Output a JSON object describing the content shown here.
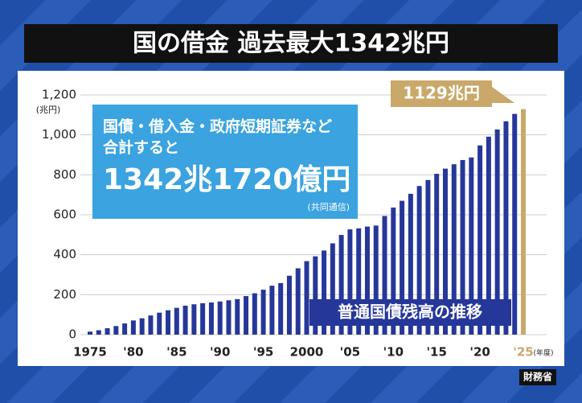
{
  "chart_data": {
    "type": "bar",
    "title": "国の借金 過去最大1342兆円",
    "y_label": "(兆円)",
    "x_label": "(年度)",
    "categories": [
      "1975",
      null,
      null,
      null,
      null,
      "'80",
      null,
      null,
      null,
      null,
      "'85",
      null,
      null,
      null,
      null,
      "'90",
      null,
      null,
      null,
      null,
      "'95",
      null,
      null,
      null,
      null,
      "2000",
      null,
      null,
      null,
      null,
      "'05",
      null,
      null,
      null,
      null,
      "'10",
      null,
      null,
      null,
      null,
      "'15",
      null,
      null,
      null,
      null,
      "'20",
      null,
      null,
      null,
      null,
      "'25"
    ],
    "values": [
      15,
      22,
      32,
      43,
      56,
      71,
      82,
      96,
      110,
      122,
      134,
      145,
      152,
      157,
      161,
      166,
      172,
      178,
      193,
      207,
      225,
      245,
      258,
      295,
      332,
      368,
      392,
      421,
      457,
      499,
      527,
      532,
      541,
      546,
      594,
      636,
      670,
      705,
      744,
      774,
      805,
      831,
      853,
      874,
      887,
      947,
      991,
      1027,
      1068,
      1105,
      1129
    ],
    "color": "#26379a",
    "highlight_color": "#c9a86a",
    "ylim": [
      0,
      1200
    ],
    "yticks": [
      0,
      200,
      400,
      600,
      800,
      {
        "value": 1000,
        "label": "1,000"
      },
      {
        "value": 1200,
        "label": "1,200"
      }
    ],
    "grid": true,
    "annotation": "1129兆円",
    "box_lines": [
      "国債・借入金・政府短期証券など",
      "合計すると",
      "1342兆1720億円"
    ],
    "box_source": "(共同通信)",
    "caption": "普通国債残高の推移",
    "source": "財務省"
  }
}
